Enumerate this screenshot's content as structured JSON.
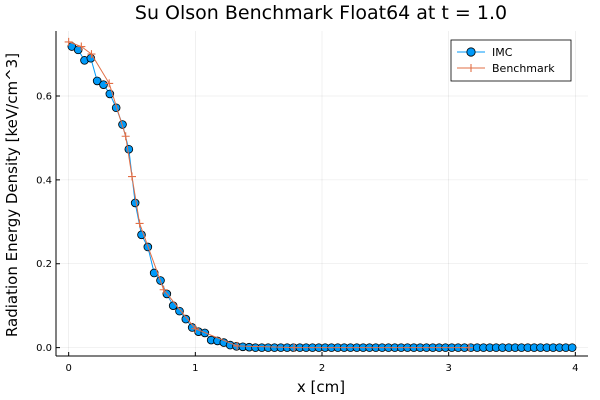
{
  "chart_data": {
    "type": "line",
    "title": "Su Olson Benchmark Float64 at t = 1.0",
    "xlabel": "x [cm]",
    "ylabel": "Radiation Energy Density [keV/cm^3]",
    "xlim": [
      -0.1,
      4.1
    ],
    "ylim": [
      -0.02,
      0.755
    ],
    "xticks": [
      0,
      1,
      2,
      3,
      4
    ],
    "xtick_labels": [
      "0",
      "1",
      "2",
      "3",
      "4"
    ],
    "yticks": [
      0.0,
      0.2,
      0.4,
      0.6
    ],
    "ytick_labels": [
      "0.0",
      "0.2",
      "0.4",
      "0.6"
    ],
    "grid": true,
    "legend_position": "top-right",
    "series": [
      {
        "name": "IMC",
        "color": "#009af9",
        "marker": "circle",
        "x": [
          0.025,
          0.075,
          0.125,
          0.175,
          0.225,
          0.275,
          0.325,
          0.375,
          0.425,
          0.475,
          0.525,
          0.575,
          0.625,
          0.675,
          0.725,
          0.775,
          0.825,
          0.875,
          0.925,
          0.975,
          1.025,
          1.075,
          1.125,
          1.175,
          1.225,
          1.275,
          1.325,
          1.375,
          1.425,
          1.475,
          1.525,
          1.575,
          1.625,
          1.675,
          1.725,
          1.775,
          1.825,
          1.875,
          1.925,
          1.975,
          2.025,
          2.075,
          2.125,
          2.175,
          2.225,
          2.275,
          2.325,
          2.375,
          2.425,
          2.475,
          2.525,
          2.575,
          2.625,
          2.675,
          2.725,
          2.775,
          2.825,
          2.875,
          2.925,
          2.975,
          3.025,
          3.075,
          3.125,
          3.175,
          3.225,
          3.275,
          3.325,
          3.375,
          3.425,
          3.475,
          3.525,
          3.575,
          3.625,
          3.675,
          3.725,
          3.775,
          3.825,
          3.875,
          3.925,
          3.975
        ],
        "y": [
          0.718,
          0.71,
          0.685,
          0.69,
          0.636,
          0.627,
          0.605,
          0.572,
          0.532,
          0.473,
          0.345,
          0.269,
          0.24,
          0.178,
          0.16,
          0.128,
          0.1,
          0.087,
          0.068,
          0.048,
          0.038,
          0.035,
          0.018,
          0.016,
          0.012,
          0.006,
          0.003,
          0.002,
          0.001,
          0.0,
          0.0,
          0.0,
          0.0,
          0.0,
          0.0,
          0.0,
          0.0,
          0.0,
          0.0,
          0.0,
          0.0,
          0.0,
          0.0,
          0.0,
          0.0,
          0.0,
          0.0,
          0.0,
          0.0,
          0.0,
          0.0,
          0.0,
          0.0,
          0.0,
          0.0,
          0.0,
          0.0,
          0.0,
          0.0,
          0.0,
          0.0,
          0.0,
          0.0,
          0.0,
          0.0,
          0.0,
          0.0,
          0.0,
          0.0,
          0.0,
          0.0,
          0.0,
          0.0,
          0.0,
          0.0,
          0.0,
          0.0,
          0.0,
          0.0,
          0.0
        ]
      },
      {
        "name": "Benchmark",
        "color": "#e26f46",
        "marker": "cross",
        "x": [
          0.0,
          0.1,
          0.18,
          0.32,
          0.45,
          0.5,
          0.56,
          0.75,
          1.0,
          1.33,
          1.78,
          3.16
        ],
        "y": [
          0.729,
          0.718,
          0.7,
          0.63,
          0.504,
          0.408,
          0.296,
          0.138,
          0.045,
          0.004,
          0.0,
          0.0
        ]
      }
    ]
  }
}
